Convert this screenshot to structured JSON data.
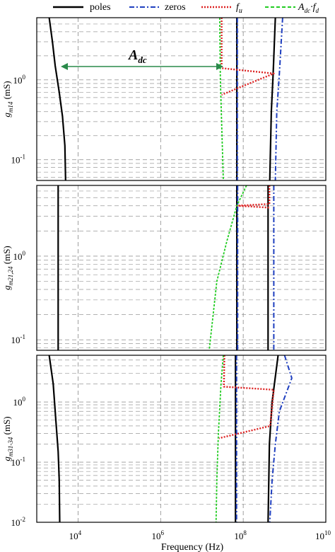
{
  "legend": {
    "entries": [
      {
        "label": "poles",
        "color": "#000000",
        "dash": "solid"
      },
      {
        "label": "zeros",
        "color": "#1f3fbf",
        "dash": "dashdot"
      },
      {
        "label": "f_u",
        "color": "#dd2222",
        "dash": "dotted"
      },
      {
        "label": "A_dc·f_d",
        "color": "#22cc22",
        "dash": "dashed"
      }
    ]
  },
  "xlabel": "Frequency (Hz)",
  "annotation": "A_dc",
  "chart_data": [
    {
      "type": "line",
      "ylabel": "g_m14 (mS)",
      "xscale": "log",
      "yscale": "log",
      "xlim": [
        1000,
        10000000000
      ],
      "ylim": [
        0.055,
        6.0
      ],
      "x_ticks": [],
      "y_ticks": [
        {
          "value": 1,
          "label": "10^0"
        },
        {
          "value": 0.1,
          "label": "10^-1"
        }
      ],
      "grid": "dashed",
      "series": [
        {
          "name": "poles",
          "points": [
            [
              2000,
              6.0
            ],
            [
              2400,
              3.0
            ],
            [
              2800,
              1.5
            ],
            [
              3500,
              0.7
            ],
            [
              4200,
              0.35
            ],
            [
              4800,
              0.15
            ],
            [
              5000,
              0.055
            ]
          ]
        },
        {
          "name": "poles",
          "points": [
            [
              70000000.0,
              6.0
            ],
            [
              70000000.0,
              0.055
            ]
          ]
        },
        {
          "name": "poles",
          "points": [
            [
              600000000.0,
              6.0
            ],
            [
              530000000.0,
              1.2
            ],
            [
              480000000.0,
              0.4
            ],
            [
              440000000.0,
              0.055
            ]
          ]
        },
        {
          "name": "zeros",
          "points": [
            [
              72000000.0,
              6.0
            ],
            [
              72000000.0,
              0.055
            ]
          ]
        },
        {
          "name": "zeros",
          "points": [
            [
              900000000.0,
              6.0
            ],
            [
              750000000.0,
              1.2
            ],
            [
              650000000.0,
              0.4
            ],
            [
              600000000.0,
              0.055
            ]
          ]
        },
        {
          "name": "f_u",
          "points": [
            [
              30000000.0,
              6.0
            ],
            [
              30000000.0,
              1.4
            ],
            [
              550000000.0,
              1.2
            ],
            [
              30000000.0,
              0.65
            ]
          ]
        },
        {
          "name": "A_dc·f_d",
          "points": [
            [
              27000000.0,
              6.0
            ],
            [
              28000000.0,
              1.0
            ],
            [
              33000000.0,
              0.055
            ]
          ]
        }
      ]
    },
    {
      "type": "line",
      "ylabel": "g_m21,24 (mS)",
      "xscale": "log",
      "yscale": "log",
      "xlim": [
        1000,
        10000000000
      ],
      "ylim": [
        0.075,
        7.0
      ],
      "x_ticks": [],
      "y_ticks": [
        {
          "value": 1,
          "label": "10^0"
        },
        {
          "value": 0.1,
          "label": "10^-1"
        }
      ],
      "grid": "dashed",
      "series": [
        {
          "name": "poles",
          "points": [
            [
              3300,
              7.0
            ],
            [
              3300,
              0.075
            ]
          ]
        },
        {
          "name": "poles",
          "points": [
            [
              70000000.0,
              7.0
            ],
            [
              70000000.0,
              0.075
            ]
          ]
        },
        {
          "name": "poles",
          "points": [
            [
              400000000.0,
              7.0
            ],
            [
              400000000.0,
              0.075
            ]
          ]
        },
        {
          "name": "zeros",
          "points": [
            [
              73000000.0,
              7.0
            ],
            [
              73000000.0,
              0.075
            ]
          ]
        },
        {
          "name": "zeros",
          "points": [
            [
              550000000.0,
              7.0
            ],
            [
              550000000.0,
              0.075
            ]
          ]
        },
        {
          "name": "f_u",
          "points": [
            [
              430000000.0,
              7.0
            ],
            [
              430000000.0,
              4.2
            ],
            [
              70000000.0,
              4.0
            ],
            [
              430000000.0,
              3.8
            ]
          ]
        },
        {
          "name": "A_dc·f_d",
          "points": [
            [
              120000000.0,
              7.0
            ],
            [
              70000000.0,
              4.0
            ],
            [
              40000000.0,
              1.5
            ],
            [
              23000000.0,
              0.5
            ],
            [
              15000000.0,
              0.075
            ]
          ]
        }
      ]
    },
    {
      "type": "line",
      "ylabel": "g_m31-34 (mS)",
      "xscale": "log",
      "yscale": "log",
      "xlim": [
        1000,
        10000000000
      ],
      "ylim": [
        0.01,
        6.0
      ],
      "x_ticks": [
        {
          "value": 10000,
          "label": "10^4"
        },
        {
          "value": 1000000,
          "label": "10^6"
        },
        {
          "value": 100000000,
          "label": "10^8"
        },
        {
          "value": 10000000000,
          "label": "10^10"
        }
      ],
      "y_ticks": [
        {
          "value": 1,
          "label": "10^0"
        },
        {
          "value": 0.1,
          "label": "10^-1"
        },
        {
          "value": 0.01,
          "label": "10^-2"
        }
      ],
      "grid": "dashed",
      "series": [
        {
          "name": "poles",
          "points": [
            [
              2000,
              6.0
            ],
            [
              2500,
              2.0
            ],
            [
              2900,
              0.5
            ],
            [
              3300,
              0.15
            ],
            [
              3500,
              0.05
            ],
            [
              3600,
              0.01
            ]
          ]
        },
        {
          "name": "poles",
          "points": [
            [
              65000000.0,
              6.0
            ],
            [
              65000000.0,
              0.01
            ]
          ]
        },
        {
          "name": "poles",
          "points": [
            [
              700000000.0,
              6.0
            ],
            [
              500000000.0,
              1.0
            ],
            [
              430000000.0,
              0.2
            ],
            [
              400000000.0,
              0.01
            ]
          ]
        },
        {
          "name": "zeros",
          "points": [
            [
              69000000.0,
              6.0
            ],
            [
              69000000.0,
              0.01
            ]
          ]
        },
        {
          "name": "zeros",
          "points": [
            [
              1000000000.0,
              6.0
            ],
            [
              1500000000.0,
              2.5
            ],
            [
              750000000.0,
              0.7
            ],
            [
              600000000.0,
              0.2
            ],
            [
              500000000.0,
              0.05
            ],
            [
              440000000.0,
              0.01
            ]
          ]
        },
        {
          "name": "f_u",
          "points": [
            [
              35000000.0,
              6.0
            ],
            [
              34000000.0,
              1.8
            ],
            [
              550000000.0,
              1.6
            ],
            [
              450000000.0,
              0.4
            ],
            [
              26000000.0,
              0.25
            ]
          ]
        },
        {
          "name": "A_dc·f_d",
          "points": [
            [
              33000000.0,
              6.0
            ],
            [
              29000000.0,
              2.0
            ],
            [
              25000000.0,
              0.3
            ],
            [
              23000000.0,
              0.05
            ],
            [
              22000000.0,
              0.01
            ]
          ]
        }
      ]
    }
  ]
}
